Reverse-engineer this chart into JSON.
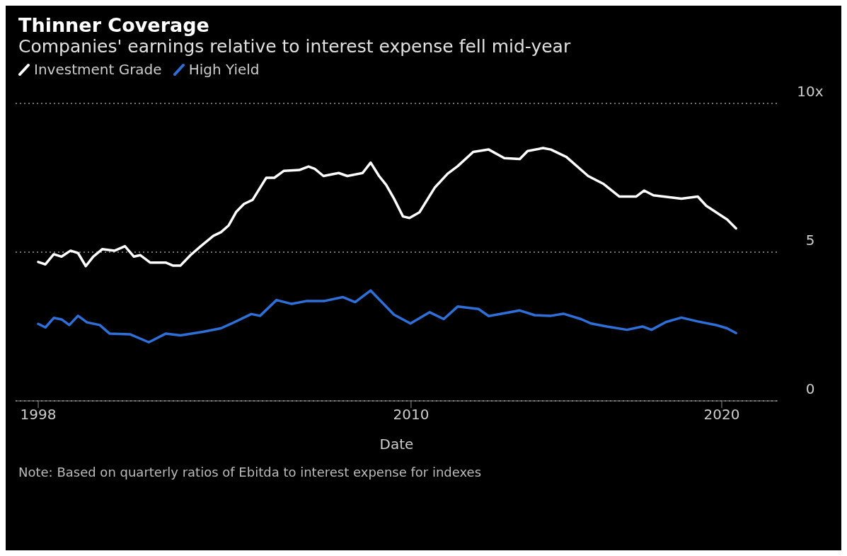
{
  "chart_data": {
    "type": "line",
    "title": "Thinner Coverage",
    "subtitle": "Companies' earnings relative to interest expense fell mid-year",
    "xlabel": "Date",
    "xlim": [
      1997.27,
      2021.8
    ],
    "xticks": [
      1998,
      2010,
      2020
    ],
    "ylim": [
      0,
      10
    ],
    "yticks": [
      0,
      5,
      {
        "value": 10,
        "label": "10x"
      }
    ],
    "grid": "y",
    "legend": "top left",
    "marker": "none",
    "line_style": "solid",
    "series": [
      {
        "name": "Investment Grade",
        "color": "#ffffff",
        "x": [
          1998.0,
          1998.23,
          1998.5,
          1998.75,
          1999.04,
          1999.28,
          1999.53,
          1999.77,
          2000.06,
          2000.46,
          2000.79,
          2001.08,
          2001.28,
          2001.6,
          2002.1,
          2002.33,
          2002.58,
          2002.9,
          2003.23,
          2003.64,
          2003.88,
          2004.13,
          2004.37,
          2004.62,
          2004.9,
          2005.34,
          2005.6,
          2005.9,
          2006.4,
          2006.7,
          2006.9,
          2007.18,
          2007.67,
          2007.95,
          2008.44,
          2008.7,
          2008.97,
          2009.2,
          2009.45,
          2009.74,
          2009.95,
          2010.27,
          2010.77,
          2011.18,
          2011.5,
          2012.0,
          2012.5,
          2013.0,
          2013.5,
          2013.75,
          2014.25,
          2014.5,
          2015.0,
          2015.7,
          2016.2,
          2016.7,
          2017.25,
          2017.5,
          2017.8,
          2018.7,
          2019.23,
          2019.5,
          2020.17,
          2020.46
        ],
        "values": [
          4.67,
          4.59,
          4.93,
          4.85,
          5.05,
          4.97,
          4.53,
          4.85,
          5.1,
          5.05,
          5.2,
          4.85,
          4.9,
          4.65,
          4.65,
          4.55,
          4.55,
          4.9,
          5.2,
          5.55,
          5.67,
          5.9,
          6.35,
          6.62,
          6.76,
          7.5,
          7.5,
          7.73,
          7.76,
          7.88,
          7.8,
          7.56,
          7.66,
          7.56,
          7.66,
          8.01,
          7.56,
          7.26,
          6.8,
          6.2,
          6.15,
          6.34,
          7.18,
          7.64,
          7.89,
          8.37,
          8.45,
          8.16,
          8.13,
          8.4,
          8.5,
          8.45,
          8.2,
          7.56,
          7.29,
          6.87,
          6.87,
          7.07,
          6.91,
          6.8,
          6.87,
          6.56,
          6.1,
          5.8
        ]
      },
      {
        "name": "High Yield",
        "color": "#2f6fd8",
        "x": [
          1998.0,
          1998.23,
          1998.5,
          1998.75,
          1999.0,
          1999.28,
          1999.57,
          1999.98,
          2000.3,
          2000.95,
          2001.56,
          2002.1,
          2002.58,
          2003.3,
          2003.88,
          2004.2,
          2004.86,
          2005.14,
          2005.67,
          2006.16,
          2006.65,
          2007.22,
          2007.8,
          2008.2,
          2008.7,
          2009.45,
          2009.98,
          2010.6,
          2011.05,
          2011.5,
          2012.17,
          2012.5,
          2013.5,
          2013.98,
          2014.5,
          2014.9,
          2015.47,
          2015.8,
          2016.3,
          2016.95,
          2017.45,
          2017.74,
          2018.2,
          2018.7,
          2019.23,
          2019.85,
          2020.17,
          2020.46
        ],
        "values": [
          2.59,
          2.47,
          2.79,
          2.74,
          2.55,
          2.86,
          2.64,
          2.55,
          2.26,
          2.24,
          1.97,
          2.26,
          2.2,
          2.32,
          2.44,
          2.59,
          2.92,
          2.86,
          3.39,
          3.26,
          3.36,
          3.36,
          3.49,
          3.32,
          3.71,
          2.9,
          2.6,
          2.98,
          2.75,
          3.17,
          3.09,
          2.85,
          3.04,
          2.88,
          2.86,
          2.93,
          2.75,
          2.6,
          2.5,
          2.39,
          2.5,
          2.39,
          2.65,
          2.8,
          2.67,
          2.54,
          2.44,
          2.28
        ]
      }
    ],
    "annotations": [
      "Note: Based on quarterly ratios of Ebitda to interest expense for indexes"
    ]
  }
}
